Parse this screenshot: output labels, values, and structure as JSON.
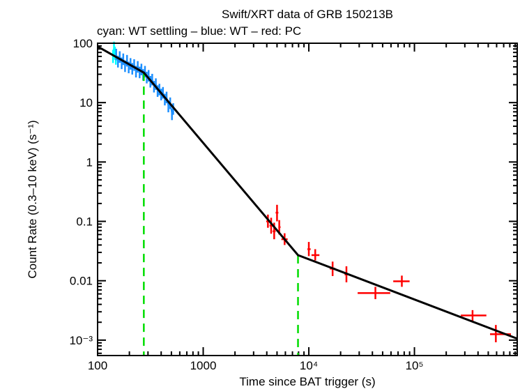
{
  "chart_data": {
    "type": "scatter",
    "title": "Swift/XRT data of GRB 150213B",
    "subtitle": "cyan: WT settling – blue: WT – red: PC",
    "xlabel": "Time since BAT trigger (s)",
    "ylabel": "Count Rate (0.3–10 keV) (s⁻¹)",
    "xscale": "log",
    "yscale": "log",
    "xlim": [
      100,
      940000
    ],
    "ylim": [
      0.00055,
      100
    ],
    "x_ticks": [
      {
        "v": 100,
        "label": "100"
      },
      {
        "v": 1000,
        "label": "1000"
      },
      {
        "v": 10000,
        "label": "10⁴"
      },
      {
        "v": 100000,
        "label": "10⁵"
      }
    ],
    "y_ticks": [
      {
        "v": 100,
        "label": "100"
      },
      {
        "v": 10,
        "label": "10"
      },
      {
        "v": 1,
        "label": "1"
      },
      {
        "v": 0.1,
        "label": "0.1"
      },
      {
        "v": 0.01,
        "label": "0.01"
      },
      {
        "v": 0.001,
        "label": "10⁻³"
      }
    ],
    "colors": {
      "cyan": "#00ffff",
      "blue": "#1e90ff",
      "red": "#ff0000",
      "model": "#000000",
      "breaks": "#00dd00"
    },
    "series": [
      {
        "name": "WT settling",
        "color": "cyan",
        "rel_err": 0.25,
        "x": [
          140,
          143,
          146,
          149
        ],
        "y": [
          62,
          85,
          70,
          58
        ]
      },
      {
        "name": "WT",
        "color": "blue",
        "rel_err": 0.22,
        "x": [
          150,
          156,
          162,
          169,
          175,
          182,
          190,
          197,
          205,
          213,
          222,
          231,
          240,
          250,
          260,
          270,
          281,
          292,
          304,
          316,
          329,
          342,
          356,
          370,
          385,
          400,
          416,
          433,
          450,
          468,
          487,
          506,
          520
        ],
        "y": [
          66,
          50,
          60,
          47,
          55,
          42,
          52,
          40,
          46,
          38,
          44,
          34,
          41,
          33,
          37,
          30,
          34,
          27,
          29,
          23,
          25,
          19,
          21,
          16,
          17,
          14,
          15,
          11.5,
          12.5,
          8.8,
          10,
          6.5,
          8
        ]
      },
      {
        "name": "PC",
        "color": "red",
        "points": [
          {
            "x": 4100,
            "y": 0.1,
            "xlo": 3950,
            "xhi": 4250,
            "ylo": 0.078,
            "yhi": 0.13
          },
          {
            "x": 4400,
            "y": 0.085,
            "xlo": 4250,
            "xhi": 4550,
            "ylo": 0.062,
            "yhi": 0.115
          },
          {
            "x": 4700,
            "y": 0.068,
            "xlo": 4550,
            "xhi": 4850,
            "ylo": 0.05,
            "yhi": 0.095
          },
          {
            "x": 5000,
            "y": 0.14,
            "xlo": 4850,
            "xhi": 5150,
            "ylo": 0.1,
            "yhi": 0.19
          },
          {
            "x": 5250,
            "y": 0.08,
            "xlo": 5150,
            "xhi": 5400,
            "ylo": 0.06,
            "yhi": 0.105
          },
          {
            "x": 5900,
            "y": 0.05,
            "xlo": 5500,
            "xhi": 6300,
            "ylo": 0.04,
            "yhi": 0.063
          },
          {
            "x": 10000,
            "y": 0.034,
            "xlo": 9700,
            "xhi": 10400,
            "ylo": 0.026,
            "yhi": 0.045
          },
          {
            "x": 11500,
            "y": 0.027,
            "xlo": 10600,
            "xhi": 12600,
            "ylo": 0.022,
            "yhi": 0.034
          },
          {
            "x": 16800,
            "y": 0.016,
            "xlo": 15800,
            "xhi": 17800,
            "ylo": 0.012,
            "yhi": 0.021
          },
          {
            "x": 22700,
            "y": 0.0128,
            "xlo": 21800,
            "xhi": 23600,
            "ylo": 0.0094,
            "yhi": 0.0175
          },
          {
            "x": 42700,
            "y": 0.0062,
            "xlo": 29000,
            "xhi": 59000,
            "ylo": 0.0049,
            "yhi": 0.0079
          },
          {
            "x": 76000,
            "y": 0.0098,
            "xlo": 63000,
            "xhi": 90000,
            "ylo": 0.0079,
            "yhi": 0.0122
          },
          {
            "x": 355000,
            "y": 0.0026,
            "xlo": 275000,
            "xhi": 480000,
            "ylo": 0.0021,
            "yhi": 0.0032
          },
          {
            "x": 590000,
            "y": 0.00126,
            "xlo": 520000,
            "xhi": 820000,
            "ylo": 0.00092,
            "yhi": 0.0018
          }
        ]
      }
    ],
    "model": {
      "x": [
        100,
        274,
        7900,
        940000
      ],
      "y": [
        88,
        32,
        0.027,
        0.00106
      ]
    },
    "breaks": [
      274,
      7900
    ]
  }
}
